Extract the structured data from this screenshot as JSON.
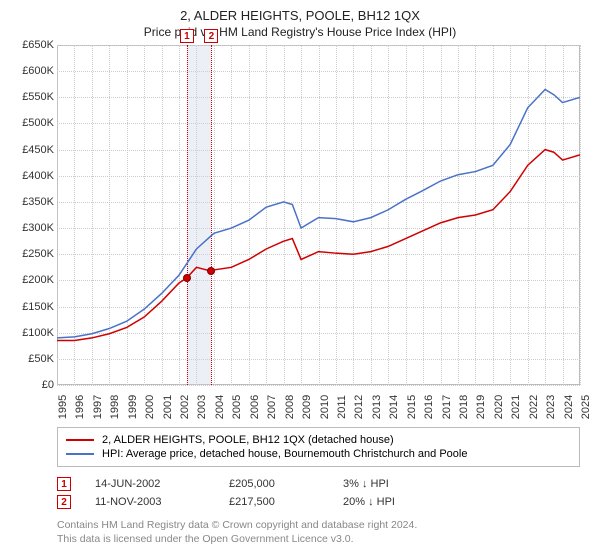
{
  "title_line1": "2, ALDER HEIGHTS, POOLE, BH12 1QX",
  "title_line2": "Price paid vs. HM Land Registry's House Price Index (HPI)",
  "chart": {
    "type": "line",
    "background_color": "#ffffff",
    "grid_color": "#cccccc",
    "border_color": "#bbbbbb",
    "y": {
      "min": 0,
      "max": 650000,
      "step": 50000,
      "labels": [
        "£0",
        "£50K",
        "£100K",
        "£150K",
        "£200K",
        "£250K",
        "£300K",
        "£350K",
        "£400K",
        "£450K",
        "£500K",
        "£550K",
        "£600K",
        "£650K"
      ],
      "label_fontsize": 11,
      "label_color": "#333333"
    },
    "x": {
      "min": 1995,
      "max": 2025,
      "step": 1,
      "labels": [
        "1995",
        "1996",
        "1997",
        "1998",
        "1999",
        "2000",
        "2001",
        "2002",
        "2003",
        "2004",
        "2005",
        "2006",
        "2007",
        "2008",
        "2009",
        "2010",
        "2011",
        "2012",
        "2013",
        "2014",
        "2015",
        "2016",
        "2017",
        "2018",
        "2019",
        "2020",
        "2021",
        "2022",
        "2023",
        "2024",
        "2025"
      ],
      "label_fontsize": 11,
      "label_color": "#333333",
      "label_rotation": -90
    },
    "marker_band": {
      "from": 2002.45,
      "to": 2003.86,
      "fill": "#c8d2e659"
    },
    "markers": [
      {
        "index": 1,
        "date": "14-JUN-2002",
        "year": 2002.45,
        "price": 205000,
        "pct": "3%",
        "pct_vs": "↓ HPI",
        "line_color": "#d00000"
      },
      {
        "index": 2,
        "date": "11-NOV-2003",
        "year": 2003.86,
        "price": 217500,
        "pct": "20%",
        "pct_vs": "↓ HPI",
        "line_color": "#d00000"
      }
    ],
    "series": [
      {
        "name": "2, ALDER HEIGHTS, POOLE, BH12 1QX (detached house)",
        "color": "#d00000",
        "line_width": 1.5,
        "points_color": "#d00000",
        "data": [
          [
            1995,
            85000
          ],
          [
            1996,
            85000
          ],
          [
            1997,
            90000
          ],
          [
            1998,
            98000
          ],
          [
            1999,
            110000
          ],
          [
            2000,
            130000
          ],
          [
            2001,
            160000
          ],
          [
            2002,
            195000
          ],
          [
            2002.45,
            205000
          ],
          [
            2003,
            225000
          ],
          [
            2003.86,
            217500
          ],
          [
            2004,
            220000
          ],
          [
            2005,
            225000
          ],
          [
            2006,
            240000
          ],
          [
            2007,
            260000
          ],
          [
            2008,
            275000
          ],
          [
            2008.5,
            280000
          ],
          [
            2009,
            240000
          ],
          [
            2010,
            255000
          ],
          [
            2011,
            252000
          ],
          [
            2012,
            250000
          ],
          [
            2013,
            255000
          ],
          [
            2014,
            265000
          ],
          [
            2015,
            280000
          ],
          [
            2016,
            295000
          ],
          [
            2017,
            310000
          ],
          [
            2018,
            320000
          ],
          [
            2019,
            325000
          ],
          [
            2020,
            335000
          ],
          [
            2021,
            370000
          ],
          [
            2022,
            420000
          ],
          [
            2023,
            450000
          ],
          [
            2023.5,
            445000
          ],
          [
            2024,
            430000
          ],
          [
            2025,
            440000
          ]
        ]
      },
      {
        "name": "HPI: Average price, detached house, Bournemouth Christchurch and Poole",
        "color": "#4a72c8",
        "line_width": 1.5,
        "data": [
          [
            1995,
            90000
          ],
          [
            1996,
            92000
          ],
          [
            1997,
            98000
          ],
          [
            1998,
            108000
          ],
          [
            1999,
            122000
          ],
          [
            2000,
            145000
          ],
          [
            2001,
            175000
          ],
          [
            2002,
            210000
          ],
          [
            2003,
            260000
          ],
          [
            2004,
            290000
          ],
          [
            2005,
            300000
          ],
          [
            2006,
            315000
          ],
          [
            2007,
            340000
          ],
          [
            2008,
            350000
          ],
          [
            2008.5,
            345000
          ],
          [
            2009,
            300000
          ],
          [
            2010,
            320000
          ],
          [
            2011,
            318000
          ],
          [
            2012,
            312000
          ],
          [
            2013,
            320000
          ],
          [
            2014,
            335000
          ],
          [
            2015,
            355000
          ],
          [
            2016,
            372000
          ],
          [
            2017,
            390000
          ],
          [
            2018,
            402000
          ],
          [
            2019,
            408000
          ],
          [
            2020,
            420000
          ],
          [
            2021,
            460000
          ],
          [
            2022,
            530000
          ],
          [
            2023,
            565000
          ],
          [
            2023.5,
            555000
          ],
          [
            2024,
            540000
          ],
          [
            2025,
            550000
          ]
        ]
      }
    ],
    "sale_points": [
      {
        "year": 2002.45,
        "price": 205000,
        "color": "#d00000",
        "stroke": "#800000"
      },
      {
        "year": 2003.86,
        "price": 217500,
        "color": "#d00000",
        "stroke": "#800000"
      }
    ]
  },
  "legend": {
    "border_color": "#bbbbbb",
    "items": [
      {
        "label": "2, ALDER HEIGHTS, POOLE, BH12 1QX (detached house)",
        "color": "#d00000"
      },
      {
        "label": "HPI: Average price, detached house, Bournemouth Christchurch and Poole",
        "color": "#4a72c8"
      }
    ]
  },
  "sales_table": {
    "rows": [
      {
        "badge": "1",
        "date": "14-JUN-2002",
        "price": "£205,000",
        "pct": "3% ↓ HPI"
      },
      {
        "badge": "2",
        "date": "11-NOV-2003",
        "price": "£217,500",
        "pct": "20% ↓ HPI"
      }
    ]
  },
  "attribution": {
    "line1": "Contains HM Land Registry data © Crown copyright and database right 2024.",
    "line2": "This data is licensed under the Open Government Licence v3.0."
  },
  "marker_badge_style": {
    "border_color": "#c00000",
    "text_color": "#c00000",
    "bg": "#ffffff"
  }
}
